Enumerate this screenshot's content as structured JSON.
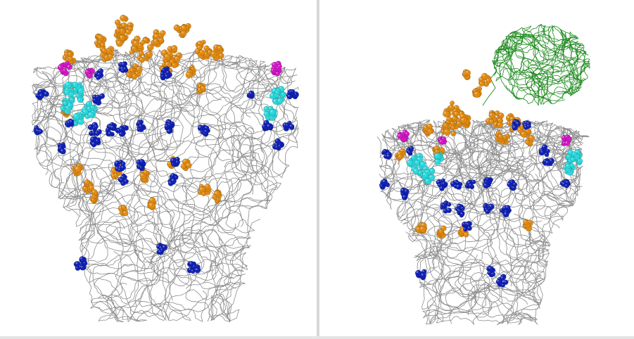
{
  "viewer": {
    "panels": [
      {
        "name": "left",
        "view": "closed-prefusion-trimer"
      },
      {
        "name": "right",
        "view": "open-trimer-with-receptor"
      }
    ]
  },
  "style": {
    "background": "#ffffff",
    "divider_color": "#d8d8d8",
    "backbone_color": "#8c8c8c",
    "colors": {
      "orange": "#e08a12",
      "blue": "#1122b8",
      "cyan": "#2ad8dc",
      "magenta": "#d416c8",
      "receptor_green": "#1f8a1f"
    }
  }
}
